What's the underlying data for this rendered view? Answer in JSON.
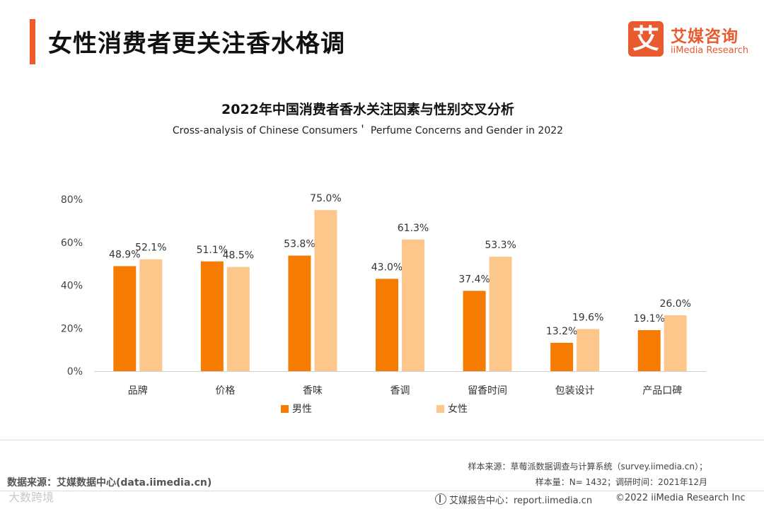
{
  "page": {
    "title": "女性消费者更关注香水格调"
  },
  "logo": {
    "glyph": "艾",
    "name_cn": "艾媒咨询",
    "name_en": "iiMedia Research"
  },
  "colors": {
    "accent": "#f0592a",
    "male": "#f57c00",
    "female": "#fdc68a",
    "brand": "#e95a2f"
  },
  "chart_data": {
    "type": "bar",
    "title": "2022年中国消费者香水关注因素与性别交叉分析",
    "subtitle": "Cross-analysis of Chinese Consumers＇ Perfume Concerns and Gender in 2022",
    "categories": [
      "品牌",
      "价格",
      "香味",
      "香调",
      "留香时间",
      "包装设计",
      "产品口碑"
    ],
    "series": [
      {
        "name": "男性",
        "values": [
          48.9,
          51.1,
          53.8,
          43.0,
          37.4,
          13.2,
          19.1
        ]
      },
      {
        "name": "女性",
        "values": [
          52.1,
          48.5,
          75.0,
          61.3,
          53.3,
          19.6,
          26.0
        ]
      }
    ],
    "value_labels": [
      [
        "48.9%",
        "51.1%",
        "53.8%",
        "43.0%",
        "37.4%",
        "13.2%",
        "19.1%"
      ],
      [
        "52.1%",
        "48.5%",
        "75.0%",
        "61.3%",
        "53.3%",
        "19.6%",
        "26.0%"
      ]
    ],
    "yticks": [
      "0%",
      "20%",
      "40%",
      "60%",
      "80%"
    ],
    "ylim": [
      0,
      80
    ],
    "xlabel": "",
    "ylabel": "",
    "legend_position": "bottom",
    "grid": false
  },
  "notes": {
    "sample_source": "样本来源：草莓派数据调查与计算系统（survey.iimedia.cn）；",
    "sample_size": "样本量：N= 1432；调研时间：2021年12月",
    "data_source": "数据来源：艾媒数据中心(data.iimedia.cn)",
    "watermark": "大数跨境",
    "report_center": "艾媒报告中心：report.iimedia.cn",
    "copyright": "©2022  iiMedia Research  Inc"
  }
}
